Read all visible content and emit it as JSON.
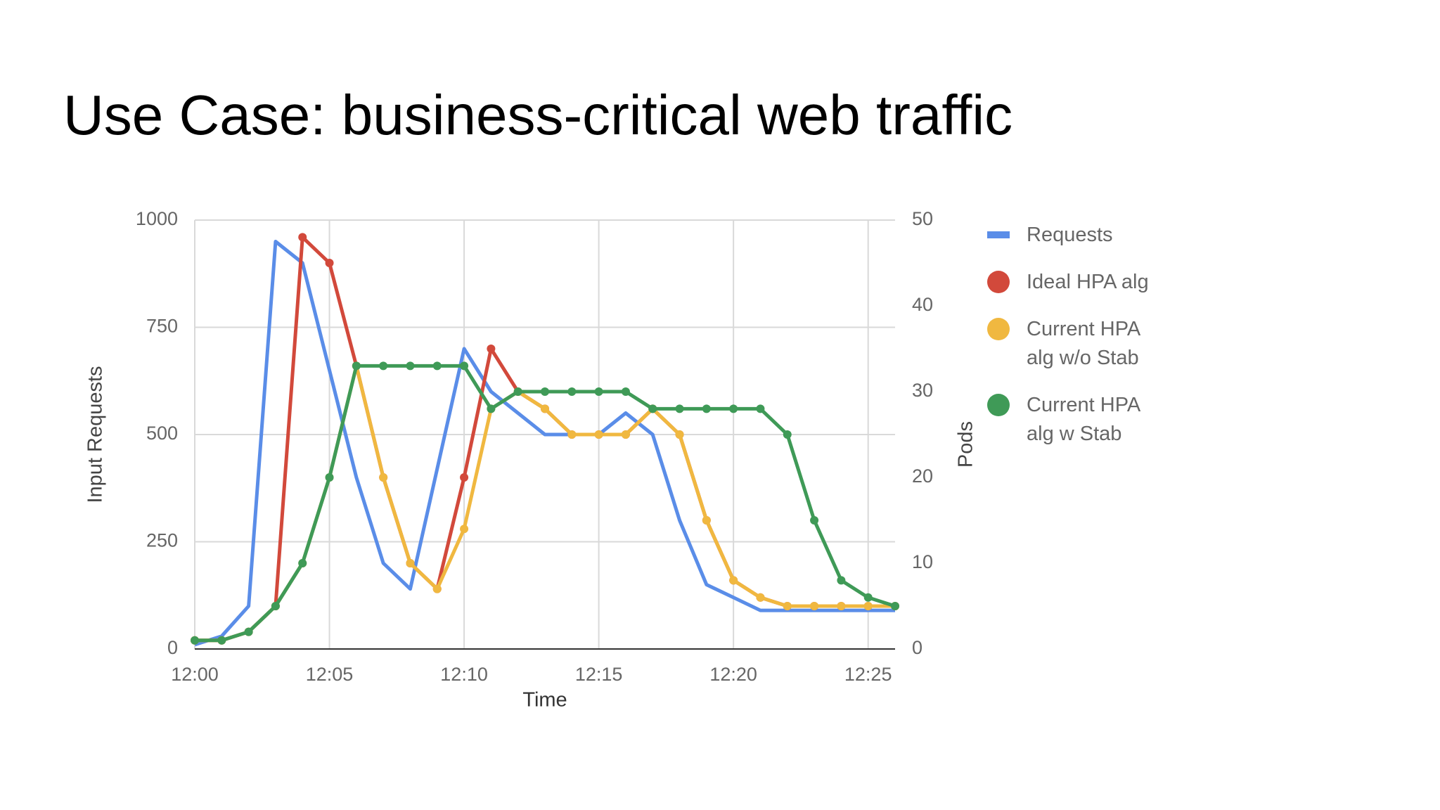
{
  "title": "Use Case: business-critical web traffic",
  "chart_data": {
    "type": "line",
    "xlabel": "Time",
    "ylabel": "Input Requests",
    "y2label": "Pods",
    "categories": [
      "12:00",
      null,
      null,
      null,
      null,
      "12:05",
      null,
      null,
      null,
      null,
      "12:10",
      null,
      null,
      null,
      null,
      "12:15",
      null,
      null,
      null,
      null,
      "12:20",
      null,
      null,
      null,
      null,
      "12:25",
      null
    ],
    "ylim": [
      0,
      1000
    ],
    "yticks": [
      0,
      250,
      500,
      750,
      1000
    ],
    "y2lim": [
      0,
      50
    ],
    "y2ticks": [
      0,
      10,
      20,
      30,
      40,
      50
    ],
    "grid": true,
    "legend": "right",
    "series": [
      {
        "name": "Requests",
        "color": "#5a8de8",
        "markers": false,
        "values": [
          10,
          30,
          100,
          950,
          900,
          650,
          400,
          200,
          140,
          420,
          700,
          600,
          550,
          500,
          500,
          500,
          550,
          500,
          300,
          150,
          120,
          90,
          90,
          90,
          90,
          90,
          90
        ]
      },
      {
        "name": "Ideal HPA alg",
        "color": "#d2493b",
        "markers": true,
        "axis": "y2",
        "values": [
          1,
          1,
          2,
          5,
          48,
          45,
          33,
          20,
          10,
          7,
          20,
          35,
          30,
          28,
          25,
          25,
          25,
          28,
          25,
          15,
          8,
          6,
          5,
          5,
          5,
          5,
          5
        ]
      },
      {
        "name": "Current HPA alg w/o Stab",
        "color": "#f0b840",
        "markers": true,
        "axis": "y2",
        "values": [
          1,
          1,
          2,
          5,
          10,
          20,
          33,
          20,
          10,
          7,
          14,
          28,
          30,
          28,
          25,
          25,
          25,
          28,
          25,
          15,
          8,
          6,
          5,
          5,
          5,
          5,
          5
        ]
      },
      {
        "name": "Current HPA alg w Stab",
        "color": "#3f9a57",
        "markers": true,
        "axis": "y2",
        "values": [
          1,
          1,
          2,
          5,
          10,
          20,
          33,
          33,
          33,
          33,
          33,
          28,
          30,
          30,
          30,
          30,
          30,
          28,
          28,
          28,
          28,
          28,
          25,
          15,
          8,
          6,
          5
        ]
      }
    ]
  }
}
